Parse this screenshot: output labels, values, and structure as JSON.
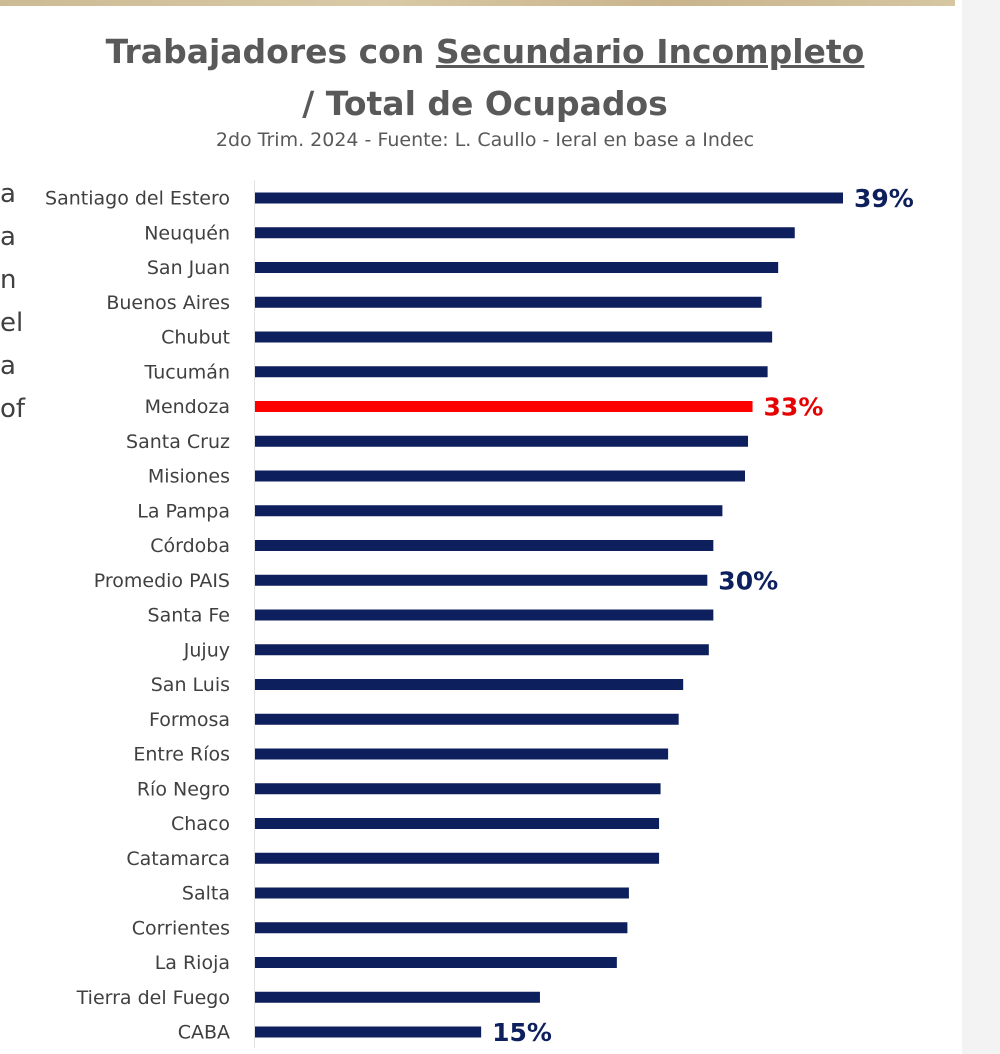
{
  "side_text": [
    "a",
    "a",
    "n",
    "el",
    "a",
    "of"
  ],
  "chart_data": {
    "type": "bar",
    "orientation": "horizontal",
    "title_part1": "Trabajadores con",
    "title_part2": "Secundario Incompleto",
    "title_line2": "/ Total de Ocupados",
    "subtitle": "2do Trim. 2024 - Fuente: L. Caullo - Ieral en base a Indec",
    "categories": [
      "Santiago del Estero",
      "Neuquén",
      "San Juan",
      "Buenos Aires",
      "Chubut",
      "Tucumán",
      "Mendoza",
      "Santa Cruz",
      "Misiones",
      "La Pampa",
      "Córdoba",
      "Promedio PAIS",
      "Santa Fe",
      "Jujuy",
      "San Luis",
      "Formosa",
      "Entre Ríos",
      "Río Negro",
      "Chaco",
      "Catamarca",
      "Salta",
      "Corrientes",
      "La Rioja",
      "Tierra del Fuego",
      "CABA"
    ],
    "values": [
      39.0,
      35.8,
      34.7,
      33.6,
      34.3,
      34.0,
      33.0,
      32.7,
      32.5,
      31.0,
      30.4,
      30.0,
      30.4,
      30.1,
      28.4,
      28.1,
      27.4,
      26.9,
      26.8,
      26.8,
      24.8,
      24.7,
      24.0,
      18.9,
      15.0
    ],
    "data_labels": {
      "Santiago del Estero": "39%",
      "Mendoza": "33%",
      "Promedio PAIS": "30%",
      "CABA": "15%"
    },
    "highlight": "Mendoza",
    "xlim": [
      0,
      39
    ],
    "colors": {
      "bar": "#0d1f5c",
      "highlight": "#ff0000",
      "label": "#0d1f5c",
      "highlight_label": "#e60000",
      "category_text": "#404040"
    },
    "grid": false,
    "legend": "none"
  }
}
